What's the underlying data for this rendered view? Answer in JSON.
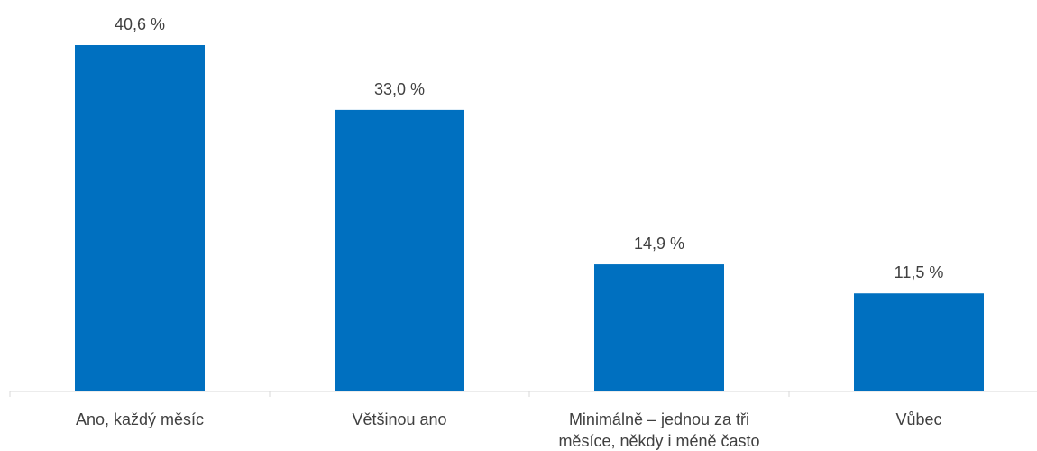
{
  "chart_data": {
    "type": "bar",
    "categories": [
      "Ano, každý měsíc",
      "Většinou ano",
      "Minimálně – jednou za tři měsíce, někdy i méně často",
      "Vůbec"
    ],
    "values": [
      40.6,
      33.0,
      14.9,
      11.5
    ],
    "value_labels": [
      "40,6 %",
      "33,0 %",
      "14,9 %",
      "11,5 %"
    ],
    "color": "#0070c0"
  }
}
